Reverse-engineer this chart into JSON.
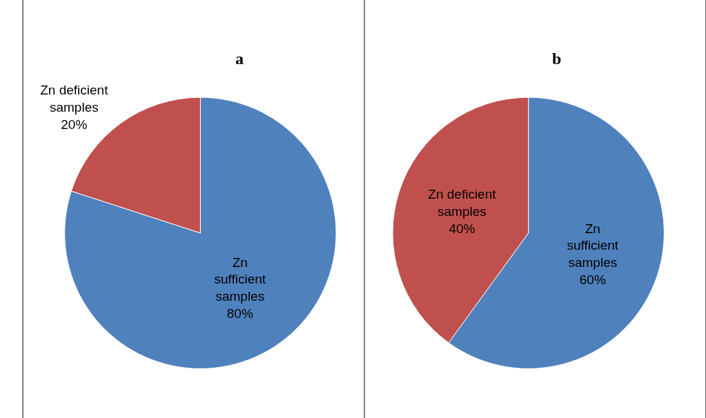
{
  "chart_data": [
    {
      "type": "pie",
      "title": "a",
      "categories": [
        "Zn sufficient samples",
        "Zn deficient samples"
      ],
      "values": [
        80,
        20
      ],
      "value_labels": [
        "80%",
        "20%"
      ],
      "colors": [
        "#4f81bd",
        "#c0504d"
      ],
      "legend": false
    },
    {
      "type": "pie",
      "title": "b",
      "categories": [
        "Zn sufficient samples",
        "Zn deficient samples"
      ],
      "values": [
        60,
        40
      ],
      "value_labels": [
        "60%",
        "40%"
      ],
      "colors": [
        "#4f81bd",
        "#c0504d"
      ],
      "legend": false
    }
  ]
}
